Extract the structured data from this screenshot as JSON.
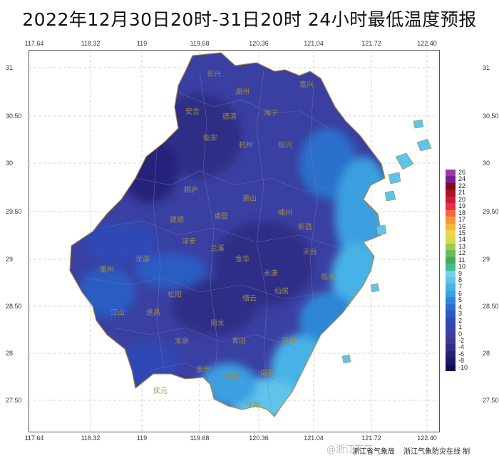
{
  "title": "2022年12月30日20时-31日20时  24小时最低温度预报",
  "axes": {
    "lon_ticks": [
      "117.64",
      "118.32",
      "119",
      "119.68",
      "120.36",
      "121.04",
      "121.72",
      "122.40"
    ],
    "lat_ticks": [
      "31",
      "30.50",
      "30",
      "29.50",
      "29",
      "28.50",
      "28",
      "27.50"
    ]
  },
  "legend": {
    "labels": [
      "26",
      "24",
      "22",
      "21",
      "20",
      "19",
      "18",
      "17",
      "16",
      "15",
      "14",
      "13",
      "12",
      "11",
      "10",
      "9",
      "8",
      "7",
      "6",
      "5",
      "4",
      "3",
      "2",
      "1",
      "0",
      "-2",
      "-4",
      "-6",
      "-8",
      "-10"
    ],
    "colors": [
      "#9b3aa8",
      "#7a1f8f",
      "#7d1010",
      "#a8132a",
      "#c81e3c",
      "#e2324f",
      "#ef6b3a",
      "#f6953f",
      "#f5b443",
      "#f6d34a",
      "#d6dc4e",
      "#9ccb4f",
      "#6dbb57",
      "#48aa5f",
      "#3fbf8f",
      "#76d0e6",
      "#5ec4ea",
      "#47b2e6",
      "#3a9fe0",
      "#2f86d6",
      "#2a6fcc",
      "#2a5bc2",
      "#2d4ab5",
      "#3545ac",
      "#3a40a2",
      "#383a94",
      "#2f2e86",
      "#25227a",
      "#1a176b",
      "#0f0e55"
    ]
  },
  "cities": [
    "长兴",
    "湖州",
    "嘉兴",
    "安吉",
    "德清",
    "海宁",
    "临安",
    "杭州",
    "绍兴",
    "桐庐",
    "萧山",
    "诸暨",
    "新昌",
    "嵊州",
    "天台",
    "建德",
    "淳安",
    "兰溪",
    "金华",
    "永康",
    "缙云",
    "仙居",
    "临海",
    "龙游",
    "衢州",
    "江山",
    "遂昌",
    "松阳",
    "丽水",
    "青田",
    "温州",
    "龙泉",
    "庆元",
    "景宁",
    "文成",
    "瑞安",
    "平阳"
  ],
  "footer": {
    "org1": "浙江省气象局",
    "org2": "浙江气象防灾在线 制",
    "watermark": "@浙江天气"
  },
  "colors": {
    "cold": "#2f2e86",
    "mid": "#3a40a2",
    "warm": "#2f86d6",
    "coast": "#5ec4ea"
  }
}
